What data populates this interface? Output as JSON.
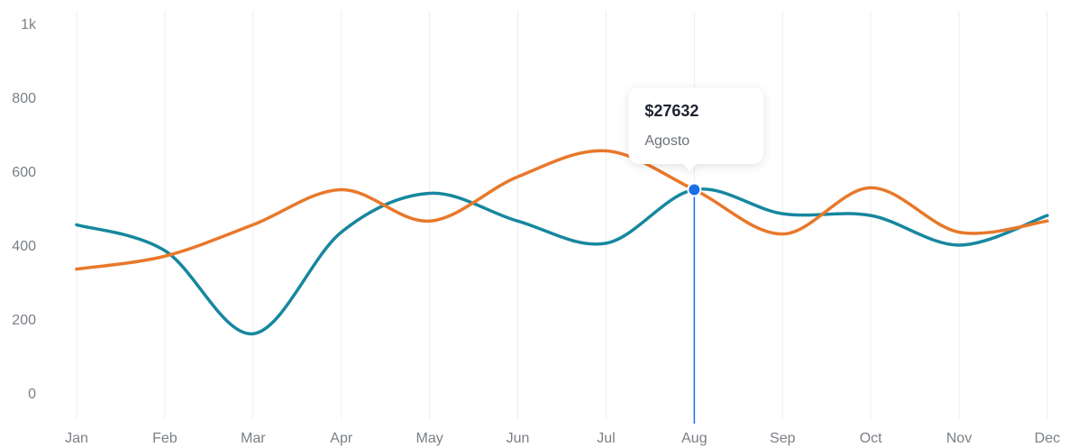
{
  "chart_data": {
    "type": "line",
    "categories": [
      "Jan",
      "Feb",
      "Mar",
      "Apr",
      "May",
      "Jun",
      "Jul",
      "Aug",
      "Sep",
      "Oct",
      "Nov",
      "Dec"
    ],
    "series": [
      {
        "color": "#16879f",
        "values": [
          460,
          390,
          165,
          440,
          545,
          470,
          410,
          555,
          490,
          485,
          405,
          485
        ]
      },
      {
        "color": "#e8782a",
        "values": [
          340,
          375,
          460,
          555,
          470,
          590,
          660,
          555,
          435,
          560,
          440,
          470
        ]
      }
    ],
    "ylim": [
      0,
      1000
    ],
    "yticks": [
      0,
      200,
      400,
      600,
      800,
      {
        "value": 1000,
        "label": "1k"
      }
    ],
    "grid": true,
    "tooltip": {
      "category_index": 7,
      "value": "$27632",
      "label": "Agosto",
      "color": "#1a6fe8"
    }
  }
}
